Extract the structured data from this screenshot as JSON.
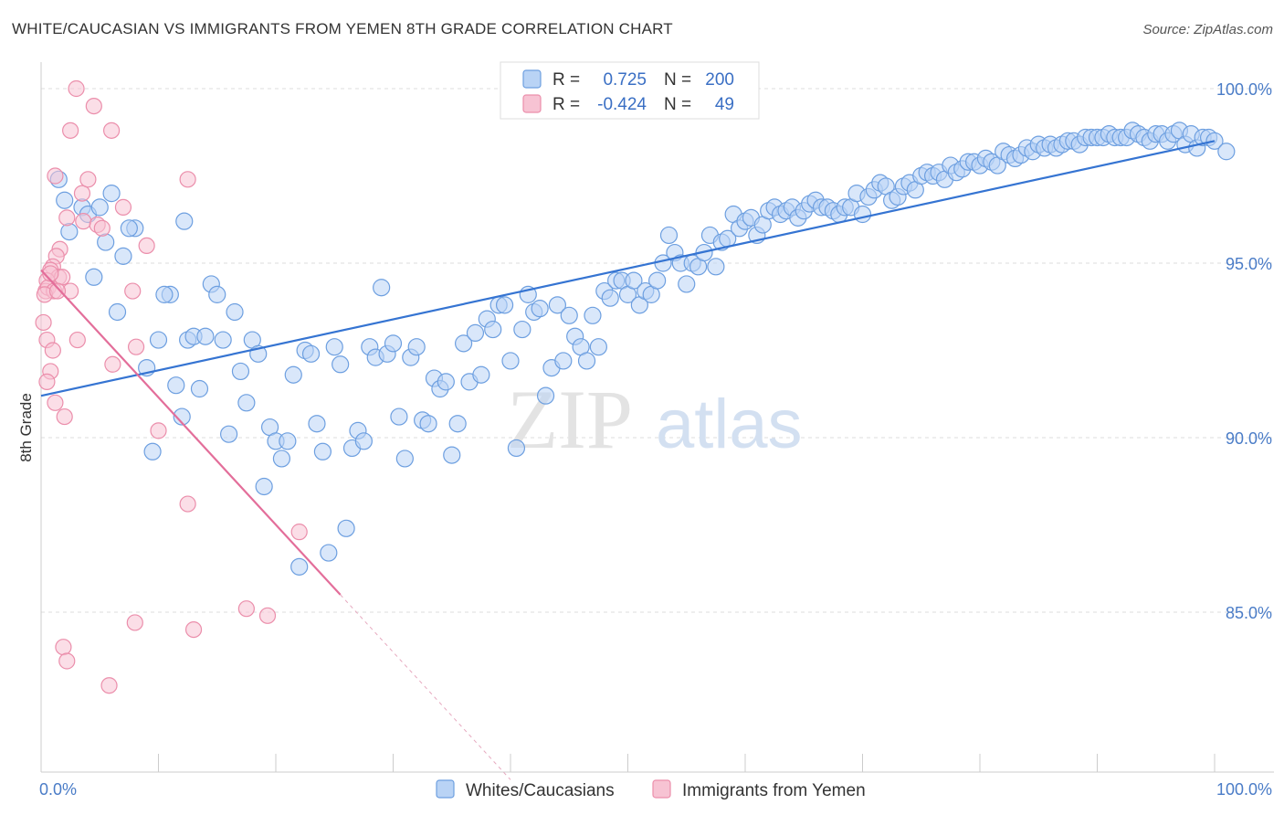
{
  "title": "WHITE/CAUCASIAN VS IMMIGRANTS FROM YEMEN 8TH GRADE CORRELATION CHART",
  "source": "Source: ZipAtlas.com",
  "watermark": {
    "zip": "ZIP",
    "atlas": "atlas"
  },
  "colors": {
    "blue_fill": "#b9d3f5",
    "blue_stroke": "#6d9fe0",
    "blue_line": "#3574d2",
    "pink_fill": "#f7c3d3",
    "pink_stroke": "#eb8eab",
    "pink_line": "#e36e9a",
    "grid": "#dddddd",
    "tick_text": "#4a7cc7"
  },
  "legend_top": {
    "rows": [
      {
        "r_label": "R =",
        "r_value": "0.725",
        "n_label": "N =",
        "n_value": "200",
        "series": "blue"
      },
      {
        "r_label": "R =",
        "r_value": "-0.424",
        "n_label": "N =",
        "n_value": "49",
        "series": "pink"
      }
    ]
  },
  "legend_bottom": [
    {
      "label": "Whites/Caucasians",
      "series": "blue"
    },
    {
      "label": "Immigrants from Yemen",
      "series": "pink"
    }
  ],
  "chart_data": {
    "type": "scatter",
    "title": "WHITE/CAUCASIAN VS IMMIGRANTS FROM YEMEN 8TH GRADE CORRELATION CHART",
    "xlabel": "",
    "ylabel": "8th Grade",
    "xlim": [
      0,
      100
    ],
    "ylim": [
      80.5,
      101
    ],
    "x_tick_labels": [
      "0.0%",
      "100.0%"
    ],
    "y_ticks": [
      85,
      90,
      95,
      100
    ],
    "y_tick_labels": [
      "85.0%",
      "90.0%",
      "95.0%",
      "100.0%"
    ],
    "grid": true,
    "legend_position": "top-center",
    "series": [
      {
        "name": "Whites/Caucasians",
        "color": "blue",
        "trend": {
          "x": [
            0,
            100
          ],
          "y": [
            91.2,
            98.5
          ]
        },
        "points": [
          [
            1.5,
            97.4
          ],
          [
            2,
            96.8
          ],
          [
            2.4,
            95.9
          ],
          [
            3.5,
            96.6
          ],
          [
            4,
            96.4
          ],
          [
            5,
            96.6
          ],
          [
            6,
            97
          ],
          [
            5.5,
            95.6
          ],
          [
            6.5,
            93.6
          ],
          [
            7,
            95.2
          ],
          [
            4.5,
            94.6
          ],
          [
            8,
            96
          ],
          [
            7.5,
            96
          ],
          [
            9,
            92
          ],
          [
            9.5,
            89.6
          ],
          [
            10,
            92.8
          ],
          [
            11,
            94.1
          ],
          [
            10.5,
            94.1
          ],
          [
            11.5,
            91.5
          ],
          [
            12,
            90.6
          ],
          [
            12.2,
            96.2
          ],
          [
            12.5,
            92.8
          ],
          [
            13,
            92.9
          ],
          [
            13.5,
            91.4
          ],
          [
            14,
            92.9
          ],
          [
            14.5,
            94.4
          ],
          [
            15,
            94.1
          ],
          [
            15.5,
            92.8
          ],
          [
            16,
            90.1
          ],
          [
            16.5,
            93.6
          ],
          [
            17,
            91.9
          ],
          [
            17.5,
            91
          ],
          [
            18,
            92.8
          ],
          [
            18.5,
            92.4
          ],
          [
            19,
            88.6
          ],
          [
            19.5,
            90.3
          ],
          [
            20,
            89.9
          ],
          [
            20.5,
            89.4
          ],
          [
            21,
            89.9
          ],
          [
            21.5,
            91.8
          ],
          [
            22,
            86.3
          ],
          [
            22.5,
            92.5
          ],
          [
            23,
            92.4
          ],
          [
            23.5,
            90.4
          ],
          [
            24,
            89.6
          ],
          [
            24.5,
            86.7
          ],
          [
            25,
            92.6
          ],
          [
            25.5,
            92.1
          ],
          [
            26,
            87.4
          ],
          [
            26.5,
            89.7
          ],
          [
            27,
            90.2
          ],
          [
            27.5,
            89.9
          ],
          [
            28,
            92.6
          ],
          [
            28.5,
            92.3
          ],
          [
            29,
            94.3
          ],
          [
            29.5,
            92.4
          ],
          [
            30,
            92.7
          ],
          [
            30.5,
            90.6
          ],
          [
            31,
            89.4
          ],
          [
            31.5,
            92.3
          ],
          [
            32,
            92.6
          ],
          [
            32.5,
            90.5
          ],
          [
            33,
            90.4
          ],
          [
            33.5,
            91.7
          ],
          [
            34,
            91.4
          ],
          [
            34.5,
            91.6
          ],
          [
            35,
            89.5
          ],
          [
            35.5,
            90.4
          ],
          [
            36,
            92.7
          ],
          [
            36.5,
            91.6
          ],
          [
            37,
            93
          ],
          [
            37.5,
            91.8
          ],
          [
            38,
            93.4
          ],
          [
            38.5,
            93.1
          ],
          [
            39,
            93.8
          ],
          [
            39.5,
            93.8
          ],
          [
            40,
            92.2
          ],
          [
            40.5,
            89.7
          ],
          [
            41,
            93.1
          ],
          [
            41.5,
            94.1
          ],
          [
            42,
            93.6
          ],
          [
            42.5,
            93.7
          ],
          [
            43,
            91.2
          ],
          [
            43.5,
            92
          ],
          [
            44,
            93.8
          ],
          [
            44.5,
            92.2
          ],
          [
            45,
            93.5
          ],
          [
            45.5,
            92.9
          ],
          [
            46,
            92.6
          ],
          [
            46.5,
            92.2
          ],
          [
            47,
            93.5
          ],
          [
            47.5,
            92.6
          ],
          [
            48,
            94.2
          ],
          [
            48.5,
            94
          ],
          [
            49,
            94.5
          ],
          [
            49.5,
            94.5
          ],
          [
            50,
            94.1
          ],
          [
            50.5,
            94.5
          ],
          [
            51,
            93.8
          ],
          [
            51.5,
            94.2
          ],
          [
            52,
            94.1
          ],
          [
            52.5,
            94.5
          ],
          [
            53,
            95
          ],
          [
            53.5,
            95.8
          ],
          [
            54,
            95.3
          ],
          [
            54.5,
            95
          ],
          [
            55,
            94.4
          ],
          [
            55.5,
            95
          ],
          [
            56,
            94.9
          ],
          [
            56.5,
            95.3
          ],
          [
            57,
            95.8
          ],
          [
            57.5,
            94.9
          ],
          [
            58,
            95.6
          ],
          [
            58.5,
            95.7
          ],
          [
            59,
            96.4
          ],
          [
            59.5,
            96
          ],
          [
            60,
            96.2
          ],
          [
            60.5,
            96.3
          ],
          [
            61,
            95.8
          ],
          [
            61.5,
            96.1
          ],
          [
            62,
            96.5
          ],
          [
            62.5,
            96.6
          ],
          [
            63,
            96.4
          ],
          [
            63.5,
            96.5
          ],
          [
            64,
            96.6
          ],
          [
            64.5,
            96.3
          ],
          [
            65,
            96.5
          ],
          [
            65.5,
            96.7
          ],
          [
            66,
            96.8
          ],
          [
            66.5,
            96.6
          ],
          [
            67,
            96.6
          ],
          [
            67.5,
            96.5
          ],
          [
            68,
            96.4
          ],
          [
            68.5,
            96.6
          ],
          [
            69,
            96.6
          ],
          [
            69.5,
            97
          ],
          [
            70,
            96.4
          ],
          [
            70.5,
            96.9
          ],
          [
            71,
            97.1
          ],
          [
            71.5,
            97.3
          ],
          [
            72,
            97.2
          ],
          [
            72.5,
            96.8
          ],
          [
            73,
            96.9
          ],
          [
            73.5,
            97.2
          ],
          [
            74,
            97.3
          ],
          [
            74.5,
            97.1
          ],
          [
            75,
            97.5
          ],
          [
            75.5,
            97.6
          ],
          [
            76,
            97.5
          ],
          [
            76.5,
            97.6
          ],
          [
            77,
            97.4
          ],
          [
            77.5,
            97.8
          ],
          [
            78,
            97.6
          ],
          [
            78.5,
            97.7
          ],
          [
            79,
            97.9
          ],
          [
            79.5,
            97.9
          ],
          [
            80,
            97.8
          ],
          [
            80.5,
            98
          ],
          [
            81,
            97.9
          ],
          [
            81.5,
            97.8
          ],
          [
            82,
            98.2
          ],
          [
            82.5,
            98.1
          ],
          [
            83,
            98
          ],
          [
            83.5,
            98.1
          ],
          [
            84,
            98.3
          ],
          [
            84.5,
            98.2
          ],
          [
            85,
            98.4
          ],
          [
            85.5,
            98.3
          ],
          [
            86,
            98.4
          ],
          [
            86.5,
            98.3
          ],
          [
            87,
            98.4
          ],
          [
            87.5,
            98.5
          ],
          [
            88,
            98.5
          ],
          [
            88.5,
            98.4
          ],
          [
            89,
            98.6
          ],
          [
            89.5,
            98.6
          ],
          [
            90,
            98.6
          ],
          [
            90.5,
            98.6
          ],
          [
            91,
            98.7
          ],
          [
            91.5,
            98.6
          ],
          [
            92,
            98.6
          ],
          [
            92.5,
            98.6
          ],
          [
            93,
            98.8
          ],
          [
            93.5,
            98.7
          ],
          [
            94,
            98.6
          ],
          [
            94.5,
            98.5
          ],
          [
            95,
            98.7
          ],
          [
            95.5,
            98.7
          ],
          [
            96,
            98.5
          ],
          [
            96.5,
            98.7
          ],
          [
            97,
            98.8
          ],
          [
            97.5,
            98.4
          ],
          [
            98,
            98.7
          ],
          [
            98.5,
            98.3
          ],
          [
            99,
            98.6
          ],
          [
            99.5,
            98.6
          ],
          [
            100,
            98.5
          ],
          [
            101,
            98.2
          ]
        ]
      },
      {
        "name": "Immigrants from Yemen",
        "color": "pink",
        "trend": {
          "x": [
            0,
            25.5
          ],
          "y": [
            94.8,
            85.5
          ],
          "dashed_x": [
            25.5,
            40
          ],
          "dashed_y": [
            85.5,
            80.2
          ]
        },
        "points": [
          [
            3,
            100
          ],
          [
            4.5,
            99.5
          ],
          [
            2.5,
            98.8
          ],
          [
            6,
            98.8
          ],
          [
            1.2,
            97.5
          ],
          [
            3.5,
            97
          ],
          [
            4,
            97.4
          ],
          [
            12.5,
            97.4
          ],
          [
            2.2,
            96.3
          ],
          [
            3.6,
            96.2
          ],
          [
            4.8,
            96.1
          ],
          [
            5.2,
            96
          ],
          [
            7,
            96.6
          ],
          [
            1.6,
            95.4
          ],
          [
            1.3,
            95.2
          ],
          [
            9,
            95.5
          ],
          [
            1,
            94.9
          ],
          [
            0.8,
            94.8
          ],
          [
            1.5,
            94.6
          ],
          [
            0.5,
            94.5
          ],
          [
            1.8,
            94.6
          ],
          [
            0.4,
            94.2
          ],
          [
            0.6,
            94.3
          ],
          [
            1.1,
            94.2
          ],
          [
            2.5,
            94.2
          ],
          [
            7.8,
            94.2
          ],
          [
            0.3,
            94.1
          ],
          [
            1.4,
            94.2
          ],
          [
            0.2,
            93.3
          ],
          [
            0.5,
            92.8
          ],
          [
            3.1,
            92.8
          ],
          [
            8.1,
            92.6
          ],
          [
            6.1,
            92.1
          ],
          [
            1,
            92.5
          ],
          [
            0.8,
            91.9
          ],
          [
            0.5,
            91.6
          ],
          [
            1.2,
            91
          ],
          [
            2,
            90.6
          ],
          [
            10,
            90.2
          ],
          [
            12.5,
            88.1
          ],
          [
            22,
            87.3
          ],
          [
            17.5,
            85.1
          ],
          [
            19.3,
            84.9
          ],
          [
            8,
            84.7
          ],
          [
            13,
            84.5
          ],
          [
            1.9,
            84
          ],
          [
            2.2,
            83.6
          ],
          [
            5.8,
            82.9
          ],
          [
            0.8,
            94.7
          ]
        ]
      }
    ]
  }
}
